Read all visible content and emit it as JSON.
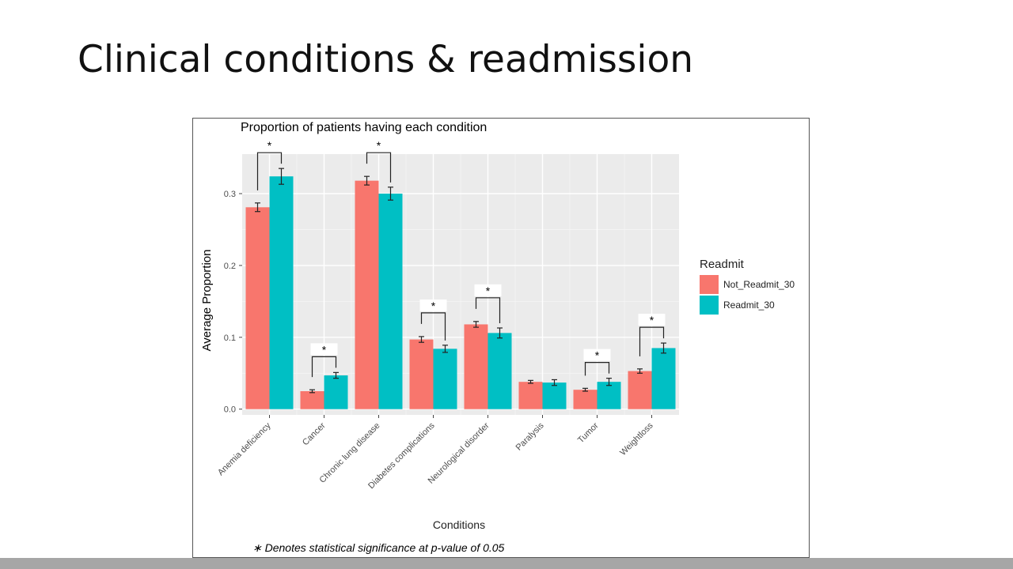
{
  "slide": {
    "title": "Clinical conditions & readmission"
  },
  "chart_data": {
    "type": "bar",
    "title": "Proportion of patients having each condition",
    "xlabel": "Conditions",
    "ylabel": "Average Proportion",
    "ylim": [
      -0.008,
      0.355
    ],
    "yticks": [
      "0.0",
      "0.1",
      "0.2",
      "0.3"
    ],
    "grid": true,
    "legend_position": "right",
    "legend_title": "Readmit",
    "categories": [
      "Anemia deficiency",
      "Cancer",
      "Chronic lung disease",
      "Diabetes complications",
      "Neurological disorder",
      "Paralysis",
      "Tumor",
      "Weightloss"
    ],
    "series": [
      {
        "name": "Not_Readmit_30",
        "color": "#F8766D",
        "values": [
          0.281,
          0.025,
          0.318,
          0.097,
          0.118,
          0.038,
          0.027,
          0.053
        ],
        "err": [
          0.006,
          0.002,
          0.006,
          0.004,
          0.004,
          0.002,
          0.002,
          0.003
        ]
      },
      {
        "name": "Readmit_30",
        "color": "#00BFC4",
        "values": [
          0.324,
          0.047,
          0.3,
          0.084,
          0.106,
          0.037,
          0.038,
          0.085
        ],
        "err": [
          0.011,
          0.004,
          0.009,
          0.005,
          0.007,
          0.004,
          0.005,
          0.007
        ]
      }
    ],
    "significance": [
      {
        "category": "Anemia deficiency",
        "label": "*"
      },
      {
        "category": "Cancer",
        "label": "*"
      },
      {
        "category": "Chronic lung disease",
        "label": "*"
      },
      {
        "category": "Diabetes complications",
        "label": "*"
      },
      {
        "category": "Neurological disorder",
        "label": "*"
      },
      {
        "category": "Tumor",
        "label": "*"
      },
      {
        "category": "Weightloss",
        "label": "*"
      }
    ],
    "footnote": "∗ Denotes statistical significance at p-value of 0.05"
  }
}
